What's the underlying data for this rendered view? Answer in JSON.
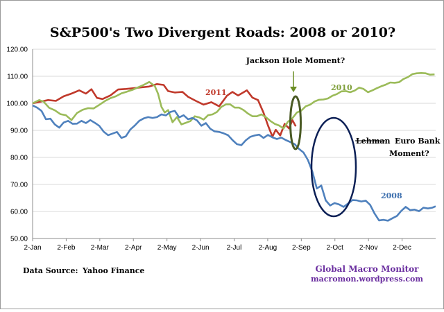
{
  "chart_data": {
    "type": "line",
    "title": "S&P500's Two Divergent Roads:  2008 or 2010?",
    "x_ticks": [
      "2-Jan",
      "2-Feb",
      "2-Mar",
      "2-Apr",
      "2-May",
      "2-Jun",
      "2-Jul",
      "2-Aug",
      "2-Sep",
      "2-Oct",
      "2-Nov",
      "2-Dec"
    ],
    "y_ticks": [
      "50.00",
      "60.00",
      "70.00",
      "80.00",
      "90.00",
      "100.00",
      "110.00",
      "120.00"
    ],
    "ylim": [
      50,
      120
    ],
    "grid": "horizontal",
    "series": [
      {
        "name": "2011",
        "color": "#c0392b",
        "points": [
          [
            0,
            100
          ],
          [
            7,
            100.6
          ],
          [
            14,
            101.2
          ],
          [
            21,
            100.9
          ],
          [
            28,
            102.6
          ],
          [
            35,
            103.6
          ],
          [
            42,
            104.8
          ],
          [
            48,
            103.6
          ],
          [
            53,
            105.2
          ],
          [
            58,
            102
          ],
          [
            63,
            101.6
          ],
          [
            70,
            102.9
          ],
          [
            77,
            105.1
          ],
          [
            84,
            105.3
          ],
          [
            91,
            105.6
          ],
          [
            98,
            105.9
          ],
          [
            105,
            106.2
          ],
          [
            112,
            107.1
          ],
          [
            118,
            106.8
          ],
          [
            122,
            104.5
          ],
          [
            128,
            104
          ],
          [
            135,
            104.2
          ],
          [
            140,
            102.4
          ],
          [
            147,
            100.9
          ],
          [
            154,
            99.5
          ],
          [
            161,
            100.4
          ],
          [
            168,
            98.9
          ],
          [
            175,
            102.8
          ],
          [
            180,
            104.2
          ],
          [
            185,
            102.9
          ],
          [
            193,
            104.8
          ],
          [
            198,
            102.1
          ],
          [
            203,
            101.2
          ],
          [
            208,
            96.5
          ],
          [
            212,
            91.8
          ],
          [
            216,
            87.7
          ],
          [
            219,
            90.2
          ],
          [
            223,
            88.1
          ],
          [
            227,
            92.4
          ],
          [
            231,
            90.7
          ],
          [
            234,
            93.8
          ],
          [
            237,
            91.5
          ]
        ]
      },
      {
        "name": "2010",
        "color": "#9bbb59",
        "points": [
          [
            0,
            100
          ],
          [
            6,
            101.2
          ],
          [
            10,
            100.6
          ],
          [
            15,
            98.3
          ],
          [
            20,
            97.4
          ],
          [
            25,
            96
          ],
          [
            30,
            95.6
          ],
          [
            35,
            93.8
          ],
          [
            40,
            96.4
          ],
          [
            45,
            97.6
          ],
          [
            50,
            98.2
          ],
          [
            55,
            98.1
          ],
          [
            60,
            99.4
          ],
          [
            65,
            100.8
          ],
          [
            70,
            101.9
          ],
          [
            75,
            102.6
          ],
          [
            80,
            103.7
          ],
          [
            85,
            104.3
          ],
          [
            90,
            105
          ],
          [
            95,
            105.9
          ],
          [
            100,
            106.8
          ],
          [
            105,
            107.9
          ],
          [
            110,
            106.4
          ],
          [
            113,
            103.5
          ],
          [
            116,
            98.7
          ],
          [
            119,
            96.6
          ],
          [
            122,
            97.5
          ],
          [
            126,
            93
          ],
          [
            130,
            94.9
          ],
          [
            134,
            92.2
          ],
          [
            138,
            92.8
          ],
          [
            142,
            93.4
          ],
          [
            146,
            95.2
          ],
          [
            150,
            94.8
          ],
          [
            154,
            94
          ],
          [
            158,
            95.6
          ],
          [
            162,
            95.9
          ],
          [
            166,
            96.8
          ],
          [
            170,
            98.7
          ],
          [
            174,
            99.6
          ],
          [
            178,
            99.6
          ],
          [
            182,
            98.4
          ],
          [
            186,
            98.4
          ],
          [
            190,
            97.5
          ],
          [
            194,
            96.2
          ],
          [
            198,
            95.2
          ],
          [
            202,
            95.2
          ],
          [
            206,
            95.9
          ],
          [
            210,
            94.9
          ],
          [
            214,
            93.5
          ],
          [
            218,
            92.4
          ],
          [
            222,
            91.8
          ],
          [
            226,
            90.7
          ],
          [
            230,
            93.2
          ],
          [
            234,
            94.5
          ],
          [
            238,
            96.6
          ],
          [
            242,
            97.3
          ],
          [
            246,
            98.9
          ],
          [
            250,
            99.5
          ],
          [
            254,
            100.7
          ],
          [
            258,
            101.3
          ],
          [
            262,
            101.4
          ],
          [
            266,
            101.8
          ],
          [
            270,
            102.8
          ],
          [
            274,
            103.4
          ],
          [
            278,
            104.4
          ],
          [
            282,
            104.5
          ],
          [
            286,
            104.1
          ],
          [
            290,
            104.7
          ],
          [
            294,
            105.8
          ],
          [
            298,
            105.3
          ],
          [
            302,
            104.1
          ],
          [
            306,
            104.8
          ],
          [
            310,
            105.6
          ],
          [
            314,
            106.3
          ],
          [
            318,
            106.9
          ],
          [
            322,
            107.7
          ],
          [
            326,
            107.6
          ],
          [
            330,
            107.8
          ],
          [
            334,
            109
          ],
          [
            338,
            109.7
          ],
          [
            342,
            110.8
          ],
          [
            346,
            111.1
          ],
          [
            350,
            111.2
          ],
          [
            354,
            111.1
          ],
          [
            358,
            110.6
          ],
          [
            362,
            110.7
          ]
        ]
      },
      {
        "name": "2008",
        "color": "#4f81bd",
        "points": [
          [
            0,
            99.2
          ],
          [
            4,
            98.4
          ],
          [
            8,
            97.2
          ],
          [
            12,
            94.1
          ],
          [
            16,
            94.3
          ],
          [
            20,
            92.2
          ],
          [
            24,
            91
          ],
          [
            28,
            92.9
          ],
          [
            32,
            93.5
          ],
          [
            36,
            92.4
          ],
          [
            40,
            92.5
          ],
          [
            44,
            93.5
          ],
          [
            48,
            92.7
          ],
          [
            52,
            93.8
          ],
          [
            56,
            92.8
          ],
          [
            60,
            91.7
          ],
          [
            64,
            89.5
          ],
          [
            68,
            88.2
          ],
          [
            72,
            88.8
          ],
          [
            76,
            89.4
          ],
          [
            80,
            87.2
          ],
          [
            84,
            87.8
          ],
          [
            88,
            90.3
          ],
          [
            92,
            91.8
          ],
          [
            96,
            93.5
          ],
          [
            100,
            94.4
          ],
          [
            104,
            94.9
          ],
          [
            108,
            94.6
          ],
          [
            112,
            94.9
          ],
          [
            116,
            95.9
          ],
          [
            120,
            95.5
          ],
          [
            124,
            96.8
          ],
          [
            128,
            97.2
          ],
          [
            132,
            94.8
          ],
          [
            136,
            95.6
          ],
          [
            140,
            94.1
          ],
          [
            144,
            94.6
          ],
          [
            148,
            93.7
          ],
          [
            152,
            91.7
          ],
          [
            156,
            92.7
          ],
          [
            160,
            90.6
          ],
          [
            164,
            89.6
          ],
          [
            168,
            89.4
          ],
          [
            172,
            88.9
          ],
          [
            176,
            88.2
          ],
          [
            180,
            86.4
          ],
          [
            184,
            84.9
          ],
          [
            188,
            84.5
          ],
          [
            192,
            86.3
          ],
          [
            196,
            87.6
          ],
          [
            200,
            88.1
          ],
          [
            204,
            88.4
          ],
          [
            208,
            87.2
          ],
          [
            212,
            88.3
          ],
          [
            216,
            87.4
          ],
          [
            220,
            86.8
          ],
          [
            224,
            87.3
          ],
          [
            228,
            86.4
          ],
          [
            232,
            85.7
          ],
          [
            236,
            84.9
          ],
          [
            240,
            83.1
          ],
          [
            244,
            81.8
          ],
          [
            248,
            79
          ],
          [
            252,
            74.7
          ],
          [
            256,
            68.5
          ],
          [
            260,
            69.6
          ],
          [
            264,
            64.1
          ],
          [
            268,
            62.2
          ],
          [
            272,
            63.1
          ],
          [
            276,
            62.6
          ],
          [
            280,
            61.7
          ],
          [
            284,
            62.9
          ],
          [
            288,
            64.2
          ],
          [
            292,
            64.1
          ],
          [
            296,
            63.7
          ],
          [
            300,
            64
          ],
          [
            304,
            62.4
          ],
          [
            308,
            59.2
          ],
          [
            312,
            56.7
          ],
          [
            316,
            56.9
          ],
          [
            320,
            56.6
          ],
          [
            324,
            57.5
          ],
          [
            328,
            58.3
          ],
          [
            332,
            60.2
          ],
          [
            336,
            61.7
          ],
          [
            340,
            60.5
          ],
          [
            344,
            60.7
          ],
          [
            348,
            60.1
          ],
          [
            352,
            61.4
          ],
          [
            356,
            61.1
          ],
          [
            360,
            61.4
          ],
          [
            363,
            61.9
          ]
        ]
      }
    ]
  },
  "annotations": {
    "series_2011": "2011",
    "series_2010": "2010",
    "series_2008": "2008",
    "jackson_hole": "Jackson Hole Moment?",
    "lehman_struck": "Lehman",
    "euro_bank": "Euro Bank",
    "moment": "Moment?"
  },
  "footer": {
    "source_label": "Data Source:",
    "source_value": "Yahoo Finance",
    "brand_line1": "Global Macro Monitor",
    "brand_line2": "macromon.wordpress.com"
  }
}
